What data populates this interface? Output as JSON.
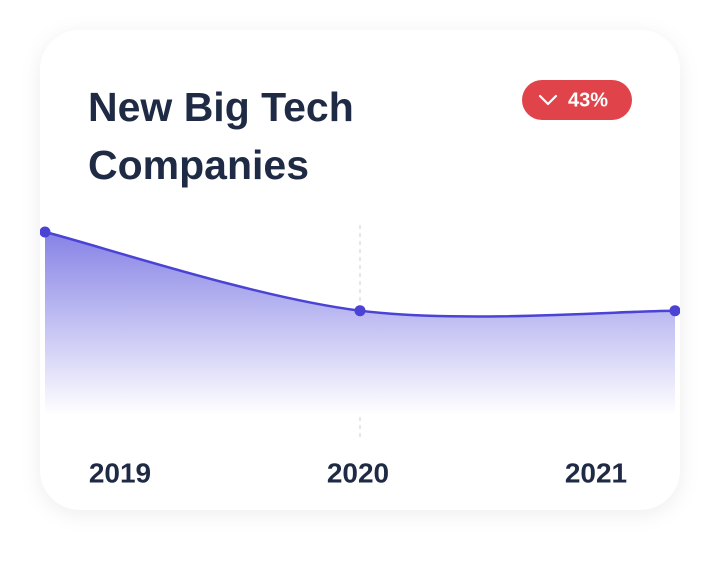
{
  "chart_data": {
    "type": "area",
    "title": [
      "New Big Tech",
      "Companies"
    ],
    "badge": "43%",
    "categories": [
      "2019",
      "2020",
      "2021"
    ],
    "values": [
      100,
      57,
      57
    ],
    "color": "#4a43d4"
  }
}
